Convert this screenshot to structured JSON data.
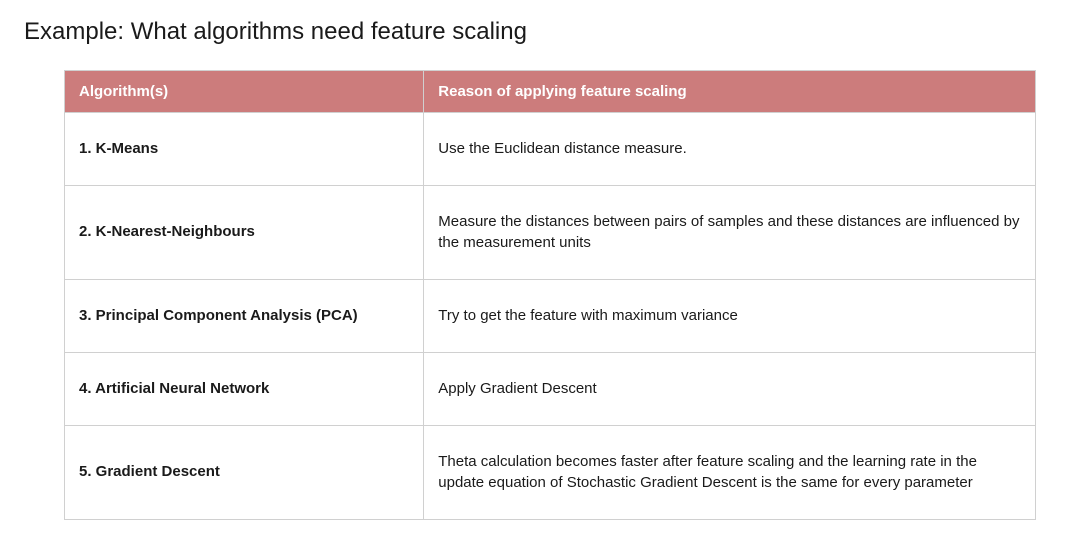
{
  "title": "Example: What algorithms need feature scaling",
  "table": {
    "header_bg": "#cc7c7c",
    "header_fg": "#ffffff",
    "border_color": "#d0d0d0",
    "cell_bg": "#ffffff",
    "text_color": "#1a1a1a",
    "col_algo_width_pct": 37,
    "col_reason_width_pct": 63,
    "columns": [
      "Algorithm(s)",
      "Reason of applying feature scaling"
    ],
    "rows": [
      {
        "algo": "1. K-Means",
        "reason": "Use the Euclidean distance measure."
      },
      {
        "algo": "2. K-Nearest-Neighbours",
        "reason": "Measure the distances between pairs of samples and these distances are influenced by the measurement units"
      },
      {
        "algo": "3. Principal Component Analysis (PCA)",
        "reason": "Try to get the feature with maximum variance"
      },
      {
        "algo": "4. Artificial Neural Network",
        "reason": "Apply Gradient Descent"
      },
      {
        "algo": "5. Gradient Descent",
        "reason": "Theta calculation becomes faster after feature scaling and the learning rate in the update equation of Stochastic Gradient Descent is the same for every parameter"
      }
    ]
  }
}
